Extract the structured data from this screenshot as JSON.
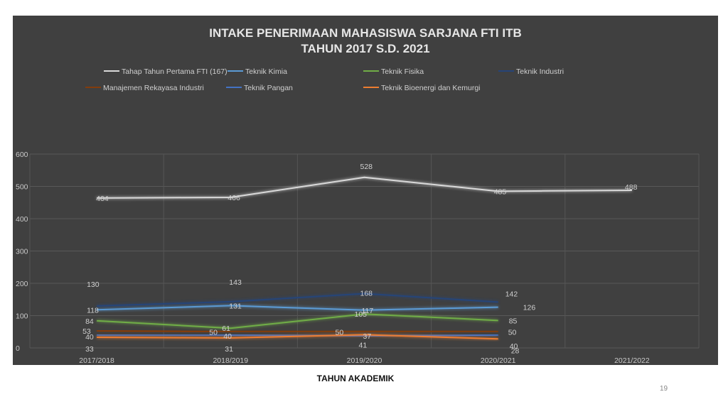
{
  "slide": {
    "xaxis_title": "TAHUN AKADEMIK",
    "page_number": "19"
  },
  "chart_data": {
    "type": "line",
    "title": "INTAKE PENERIMAAN MAHASISWA SARJANA FTI ITB",
    "subtitle": "TAHUN 2017 S.D. 2021",
    "categories": [
      "2017/2018",
      "2018/2019",
      "2019/2020",
      "2020/2021",
      "2021/2022"
    ],
    "ylim": [
      0,
      600
    ],
    "yticks": [
      0,
      100,
      200,
      300,
      400,
      500,
      600
    ],
    "grid": true,
    "legend_position": "top",
    "series": [
      {
        "name": "Tahap Tahun Pertama FTI (167)",
        "color": "#d9d9d9",
        "values": [
          464,
          466,
          528,
          485,
          488
        ]
      },
      {
        "name": "Teknik Kimia",
        "color": "#5b9bd5",
        "values": [
          118,
          131,
          117,
          126,
          null
        ]
      },
      {
        "name": "Teknik Fisika",
        "color": "#70ad47",
        "values": [
          84,
          61,
          105,
          85,
          null
        ]
      },
      {
        "name": "Teknik Industri",
        "color": "#264478",
        "values": [
          130,
          143,
          168,
          142,
          null
        ]
      },
      {
        "name": "Manajemen Rekayasa Industri",
        "color": "#843c0c",
        "values": [
          53,
          50,
          50,
          50,
          null
        ]
      },
      {
        "name": "Teknik Pangan",
        "color": "#4472c4",
        "values": [
          40,
          40,
          37,
          40,
          null
        ]
      },
      {
        "name": "Teknik Bioenergi dan Kemurgi",
        "color": "#ed7d31",
        "values": [
          33,
          31,
          41,
          28,
          null
        ]
      }
    ]
  }
}
